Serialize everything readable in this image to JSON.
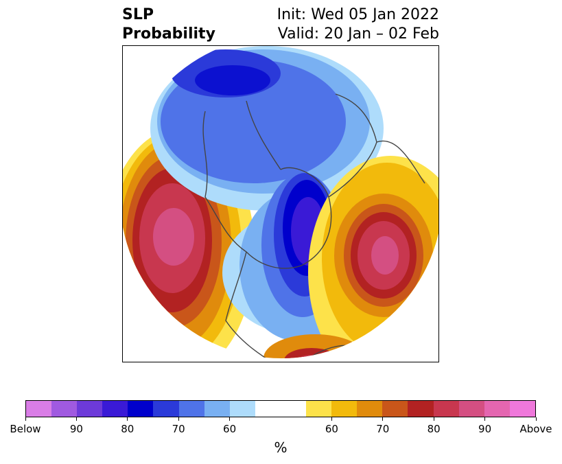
{
  "header": {
    "variable": "SLP",
    "product": "Probability",
    "init": "Init: Wed 05 Jan 2022",
    "valid": "Valid: 20 Jan – 02 Feb"
  },
  "colorbar": {
    "colors": [
      "#d97de6",
      "#a05ae0",
      "#6d3ad9",
      "#3a1ad6",
      "#0000cc",
      "#2b3ad9",
      "#4f73e8",
      "#79b0f2",
      "#aedcfb",
      "#ffffff",
      "#ffffff",
      "#fde24a",
      "#f2ba0c",
      "#e08b0c",
      "#c9561a",
      "#b22222",
      "#c8374f",
      "#d44f82",
      "#e466b0",
      "#ef78db"
    ],
    "labels": [
      "Below",
      "90",
      "80",
      "70",
      "60",
      "60",
      "70",
      "80",
      "90",
      "Above"
    ],
    "unit": "%"
  }
}
